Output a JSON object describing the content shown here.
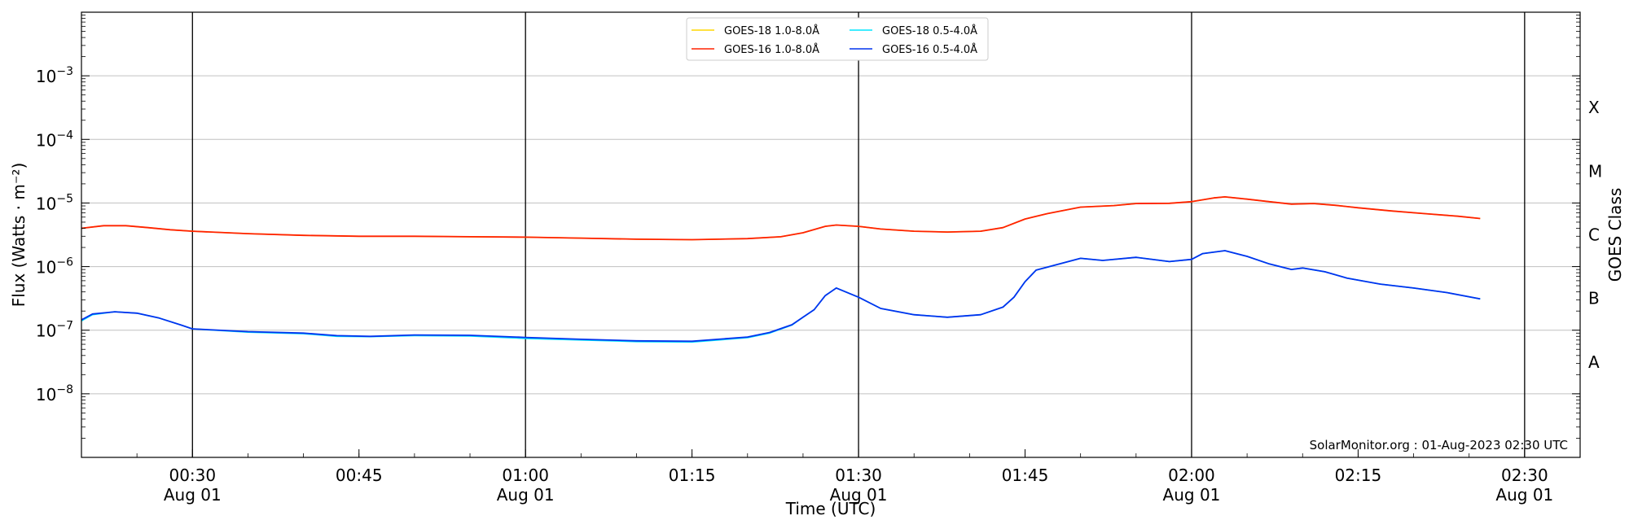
{
  "chart_data": {
    "type": "line",
    "title": "",
    "xlabel": "Time (UTC)",
    "ylabel": "Flux (Watts · m⁻²)",
    "y_scale": "log",
    "ylim": [
      1e-09,
      0.01
    ],
    "xlim": [
      "2023-08-01 00:20",
      "2023-08-01 02:35"
    ],
    "grid": "horizontal at y decades",
    "legend_position": "top-center",
    "x_ticks": [
      {
        "time": "2023-08-01 00:30",
        "line1": "00:30",
        "line2": "Aug 01",
        "vline": true
      },
      {
        "time": "2023-08-01 00:45",
        "line1": "00:45",
        "line2": "",
        "vline": false
      },
      {
        "time": "2023-08-01 01:00",
        "line1": "01:00",
        "line2": "Aug 01",
        "vline": true
      },
      {
        "time": "2023-08-01 01:15",
        "line1": "01:15",
        "line2": "",
        "vline": false
      },
      {
        "time": "2023-08-01 01:30",
        "line1": "01:30",
        "line2": "Aug 01",
        "vline": true
      },
      {
        "time": "2023-08-01 01:45",
        "line1": "01:45",
        "line2": "",
        "vline": false
      },
      {
        "time": "2023-08-01 02:00",
        "line1": "02:00",
        "line2": "Aug 01",
        "vline": true
      },
      {
        "time": "2023-08-01 02:15",
        "line1": "02:15",
        "line2": "",
        "vline": false
      },
      {
        "time": "2023-08-01 02:30",
        "line1": "02:30",
        "line2": "Aug 01",
        "vline": true
      }
    ],
    "y_ticks": [
      {
        "value": 1e-08,
        "exp": "−8"
      },
      {
        "value": 1e-07,
        "exp": "−7"
      },
      {
        "value": 1e-06,
        "exp": "−6"
      },
      {
        "value": 1e-05,
        "exp": "−5"
      },
      {
        "value": 0.0001,
        "exp": "−4"
      },
      {
        "value": 0.001,
        "exp": "−3"
      }
    ],
    "right_axis": {
      "label": "GOES Class",
      "classes": [
        {
          "label": "A",
          "value": 3.16e-08
        },
        {
          "label": "B",
          "value": 3.16e-07
        },
        {
          "label": "C",
          "value": 3.16e-06
        },
        {
          "label": "M",
          "value": 3.16e-05
        },
        {
          "label": "X",
          "value": 0.000316
        }
      ]
    },
    "annotation": "SolarMonitor.org : 01-Aug-2023 02:30 UTC",
    "series": [
      {
        "name": "GOES-18 1.0-8.0Å",
        "color": "#ffd700",
        "width": 1.6,
        "x": [
          "2023-08-01 00:20",
          "2023-08-01 00:22",
          "2023-08-01 00:24",
          "2023-08-01 00:26",
          "2023-08-01 00:28",
          "2023-08-01 00:30",
          "2023-08-01 00:35",
          "2023-08-01 00:40",
          "2023-08-01 00:45",
          "2023-08-01 00:50",
          "2023-08-01 00:55",
          "2023-08-01 01:00",
          "2023-08-01 01:05",
          "2023-08-01 01:10",
          "2023-08-01 01:15",
          "2023-08-01 01:20",
          "2023-08-01 01:23",
          "2023-08-01 01:25",
          "2023-08-01 01:27",
          "2023-08-01 01:28",
          "2023-08-01 01:30",
          "2023-08-01 01:32",
          "2023-08-01 01:35",
          "2023-08-01 01:38",
          "2023-08-01 01:41",
          "2023-08-01 01:43",
          "2023-08-01 01:45",
          "2023-08-01 01:47",
          "2023-08-01 01:50",
          "2023-08-01 01:53",
          "2023-08-01 01:55",
          "2023-08-01 01:58",
          "2023-08-01 02:00",
          "2023-08-01 02:02",
          "2023-08-01 02:03",
          "2023-08-01 02:05",
          "2023-08-01 02:07",
          "2023-08-01 02:09",
          "2023-08-01 02:11",
          "2023-08-01 02:13",
          "2023-08-01 02:15",
          "2023-08-01 02:18",
          "2023-08-01 02:21",
          "2023-08-01 02:24",
          "2023-08-01 02:26"
        ],
        "values": [
          4e-06,
          4.4e-06,
          4.4e-06,
          4.1e-06,
          3.8e-06,
          3.6e-06,
          3.3e-06,
          3.1e-06,
          3e-06,
          3e-06,
          2.95e-06,
          2.9e-06,
          2.8e-06,
          2.7e-06,
          2.65e-06,
          2.75e-06,
          2.95e-06,
          3.4e-06,
          4.3e-06,
          4.5e-06,
          4.3e-06,
          3.9e-06,
          3.6e-06,
          3.5e-06,
          3.6e-06,
          4.1e-06,
          5.6e-06,
          6.8e-06,
          8.6e-06,
          9.1e-06,
          9.8e-06,
          9.9e-06,
          1.05e-05,
          1.2e-05,
          1.25e-05,
          1.15e-05,
          1.05e-05,
          9.6e-06,
          9.8e-06,
          9.2e-06,
          8.4e-06,
          7.5e-06,
          6.8e-06,
          6.2e-06,
          5.7e-06
        ]
      },
      {
        "name": "GOES-16 1.0-8.0Å",
        "color": "#ff2200",
        "width": 1.8,
        "x": [
          "2023-08-01 00:20",
          "2023-08-01 00:22",
          "2023-08-01 00:24",
          "2023-08-01 00:26",
          "2023-08-01 00:28",
          "2023-08-01 00:30",
          "2023-08-01 00:35",
          "2023-08-01 00:40",
          "2023-08-01 00:45",
          "2023-08-01 00:50",
          "2023-08-01 00:55",
          "2023-08-01 01:00",
          "2023-08-01 01:05",
          "2023-08-01 01:10",
          "2023-08-01 01:15",
          "2023-08-01 01:20",
          "2023-08-01 01:23",
          "2023-08-01 01:25",
          "2023-08-01 01:27",
          "2023-08-01 01:28",
          "2023-08-01 01:30",
          "2023-08-01 01:32",
          "2023-08-01 01:35",
          "2023-08-01 01:38",
          "2023-08-01 01:41",
          "2023-08-01 01:43",
          "2023-08-01 01:45",
          "2023-08-01 01:47",
          "2023-08-01 01:50",
          "2023-08-01 01:53",
          "2023-08-01 01:55",
          "2023-08-01 01:58",
          "2023-08-01 02:00",
          "2023-08-01 02:02",
          "2023-08-01 02:03",
          "2023-08-01 02:05",
          "2023-08-01 02:07",
          "2023-08-01 02:09",
          "2023-08-01 02:11",
          "2023-08-01 02:13",
          "2023-08-01 02:15",
          "2023-08-01 02:18",
          "2023-08-01 02:21",
          "2023-08-01 02:24",
          "2023-08-01 02:26"
        ],
        "values": [
          4e-06,
          4.4e-06,
          4.4e-06,
          4.1e-06,
          3.8e-06,
          3.6e-06,
          3.3e-06,
          3.1e-06,
          3e-06,
          3e-06,
          2.95e-06,
          2.9e-06,
          2.8e-06,
          2.7e-06,
          2.65e-06,
          2.75e-06,
          2.95e-06,
          3.4e-06,
          4.3e-06,
          4.5e-06,
          4.3e-06,
          3.9e-06,
          3.6e-06,
          3.5e-06,
          3.6e-06,
          4.1e-06,
          5.6e-06,
          6.8e-06,
          8.6e-06,
          9.1e-06,
          9.8e-06,
          9.9e-06,
          1.05e-05,
          1.2e-05,
          1.25e-05,
          1.15e-05,
          1.05e-05,
          9.6e-06,
          9.8e-06,
          9.2e-06,
          8.4e-06,
          7.5e-06,
          6.8e-06,
          6.2e-06,
          5.7e-06
        ]
      },
      {
        "name": "GOES-18 0.5-4.0Å",
        "color": "#00e5ff",
        "width": 1.6,
        "x": [
          "2023-08-01 00:20",
          "2023-08-01 00:21",
          "2023-08-01 00:23",
          "2023-08-01 00:25",
          "2023-08-01 00:27",
          "2023-08-01 00:29",
          "2023-08-01 00:30",
          "2023-08-01 00:35",
          "2023-08-01 00:40",
          "2023-08-01 00:43",
          "2023-08-01 00:46",
          "2023-08-01 00:50",
          "2023-08-01 00:55",
          "2023-08-01 01:00",
          "2023-08-01 01:05",
          "2023-08-01 01:10",
          "2023-08-01 01:15",
          "2023-08-01 01:20",
          "2023-08-01 01:22",
          "2023-08-01 01:24",
          "2023-08-01 01:25",
          "2023-08-01 01:26",
          "2023-08-01 01:27",
          "2023-08-01 01:28",
          "2023-08-01 01:30",
          "2023-08-01 01:32",
          "2023-08-01 01:35",
          "2023-08-01 01:38",
          "2023-08-01 01:41",
          "2023-08-01 01:43",
          "2023-08-01 01:44",
          "2023-08-01 01:45",
          "2023-08-01 01:46",
          "2023-08-01 01:47",
          "2023-08-01 01:50",
          "2023-08-01 01:52",
          "2023-08-01 01:55",
          "2023-08-01 01:58",
          "2023-08-01 02:00",
          "2023-08-01 02:01",
          "2023-08-01 02:03",
          "2023-08-01 02:05",
          "2023-08-01 02:07",
          "2023-08-01 02:09",
          "2023-08-01 02:10",
          "2023-08-01 02:12",
          "2023-08-01 02:14",
          "2023-08-01 02:17",
          "2023-08-01 02:20",
          "2023-08-01 02:23",
          "2023-08-01 02:26"
        ],
        "values": [
          1.4e-07,
          1.75e-07,
          1.95e-07,
          1.85e-07,
          1.55e-07,
          1.2e-07,
          1.05e-07,
          9.3e-08,
          8.8e-08,
          8e-08,
          7.9e-08,
          8.2e-08,
          8.1e-08,
          7.4e-08,
          7e-08,
          6.6e-08,
          6.5e-08,
          7.6e-08,
          9e-08,
          1.2e-07,
          1.6e-07,
          2.1e-07,
          3.5e-07,
          4.6e-07,
          3.3e-07,
          2.2e-07,
          1.75e-07,
          1.6e-07,
          1.75e-07,
          2.3e-07,
          3.3e-07,
          5.8e-07,
          8.8e-07,
          9.8e-07,
          1.35e-06,
          1.25e-06,
          1.4e-06,
          1.2e-06,
          1.3e-06,
          1.6e-06,
          1.78e-06,
          1.45e-06,
          1.1e-06,
          9e-07,
          9.5e-07,
          8.3e-07,
          6.6e-07,
          5.3e-07,
          4.6e-07,
          3.9e-07,
          3.1e-07
        ]
      },
      {
        "name": "GOES-16 0.5-4.0Å",
        "color": "#0033ee",
        "width": 1.8,
        "x": [
          "2023-08-01 00:20",
          "2023-08-01 00:21",
          "2023-08-01 00:23",
          "2023-08-01 00:25",
          "2023-08-01 00:27",
          "2023-08-01 00:29",
          "2023-08-01 00:30",
          "2023-08-01 00:35",
          "2023-08-01 00:40",
          "2023-08-01 00:43",
          "2023-08-01 00:46",
          "2023-08-01 00:50",
          "2023-08-01 00:55",
          "2023-08-01 01:00",
          "2023-08-01 01:05",
          "2023-08-01 01:10",
          "2023-08-01 01:15",
          "2023-08-01 01:20",
          "2023-08-01 01:22",
          "2023-08-01 01:24",
          "2023-08-01 01:25",
          "2023-08-01 01:26",
          "2023-08-01 01:27",
          "2023-08-01 01:28",
          "2023-08-01 01:30",
          "2023-08-01 01:32",
          "2023-08-01 01:35",
          "2023-08-01 01:38",
          "2023-08-01 01:41",
          "2023-08-01 01:43",
          "2023-08-01 01:44",
          "2023-08-01 01:45",
          "2023-08-01 01:46",
          "2023-08-01 01:47",
          "2023-08-01 01:50",
          "2023-08-01 01:52",
          "2023-08-01 01:55",
          "2023-08-01 01:58",
          "2023-08-01 02:00",
          "2023-08-01 02:01",
          "2023-08-01 02:03",
          "2023-08-01 02:05",
          "2023-08-01 02:07",
          "2023-08-01 02:09",
          "2023-08-01 02:10",
          "2023-08-01 02:12",
          "2023-08-01 02:14",
          "2023-08-01 02:17",
          "2023-08-01 02:20",
          "2023-08-01 02:23",
          "2023-08-01 02:26"
        ],
        "values": [
          1.45e-07,
          1.8e-07,
          1.95e-07,
          1.85e-07,
          1.55e-07,
          1.2e-07,
          1.05e-07,
          9.5e-08,
          9e-08,
          8.2e-08,
          8e-08,
          8.4e-08,
          8.3e-08,
          7.7e-08,
          7.2e-08,
          6.8e-08,
          6.7e-08,
          7.8e-08,
          9.2e-08,
          1.22e-07,
          1.6e-07,
          2.1e-07,
          3.5e-07,
          4.6e-07,
          3.3e-07,
          2.2e-07,
          1.75e-07,
          1.6e-07,
          1.75e-07,
          2.3e-07,
          3.3e-07,
          5.8e-07,
          8.8e-07,
          9.8e-07,
          1.35e-06,
          1.25e-06,
          1.4e-06,
          1.2e-06,
          1.3e-06,
          1.6e-06,
          1.78e-06,
          1.45e-06,
          1.1e-06,
          9e-07,
          9.5e-07,
          8.3e-07,
          6.6e-07,
          5.3e-07,
          4.6e-07,
          3.9e-07,
          3.1e-07
        ]
      }
    ]
  }
}
